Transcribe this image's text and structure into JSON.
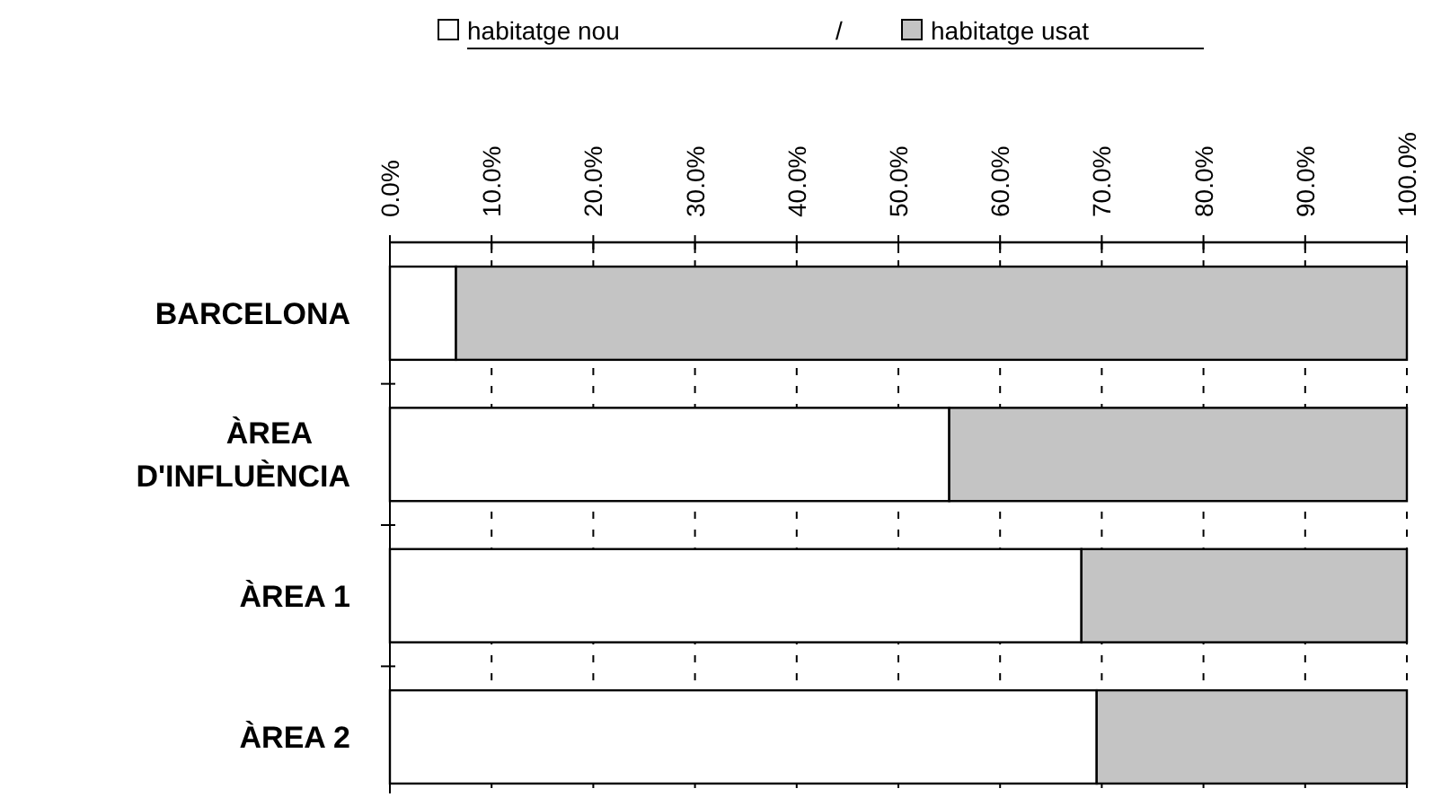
{
  "chart_data": {
    "type": "bar",
    "orientation": "horizontal",
    "stacked": true,
    "categories": [
      "BARCELONA",
      "ÀREA D'INFLUÈNCIA",
      "ÀREA 1",
      "ÀREA 2"
    ],
    "series": [
      {
        "name": "habitatge nou",
        "color": "#ffffff",
        "values": [
          6.5,
          55,
          68,
          69.5
        ]
      },
      {
        "name": "habitatge usat",
        "color": "#c4c4c4",
        "values": [
          93.5,
          45,
          32,
          30.5
        ]
      }
    ],
    "xlim": [
      0,
      100
    ],
    "xticks": [
      {
        "value": 0,
        "label": "0.0%"
      },
      {
        "value": 10,
        "label": "10.0%"
      },
      {
        "value": 20,
        "label": "20.0%"
      },
      {
        "value": 30,
        "label": "30.0%"
      },
      {
        "value": 40,
        "label": "40.0%"
      },
      {
        "value": 50,
        "label": "50.0%"
      },
      {
        "value": 60,
        "label": "60.0%"
      },
      {
        "value": 70,
        "label": "70.0%"
      },
      {
        "value": 80,
        "label": "80.0%"
      },
      {
        "value": 90,
        "label": "90.0%"
      },
      {
        "value": 100,
        "label": "100.0%"
      }
    ],
    "grid": "x",
    "legend": "top",
    "annotations": [
      "/"
    ]
  }
}
